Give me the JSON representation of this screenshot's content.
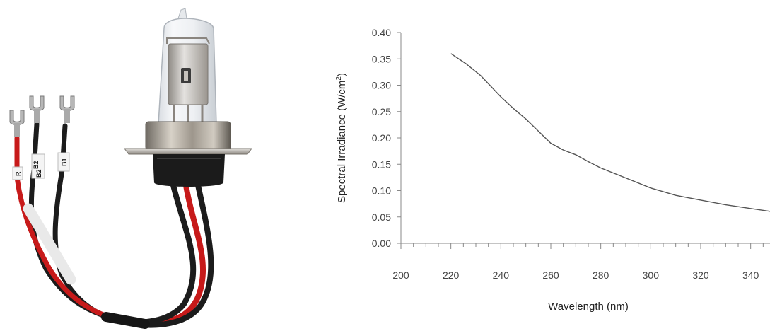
{
  "product_image": {
    "wire_labels": [
      "R",
      "B2",
      "B2",
      "B1"
    ]
  },
  "chart_data": {
    "type": "line",
    "xlabel": "Wavelength (nm)",
    "ylabel_main": "Spectral Irradiance (W/cm",
    "ylabel_sup": "2",
    "ylabel_end": ")",
    "xlim": [
      200,
      350
    ],
    "ylim": [
      0,
      0.4
    ],
    "x_ticks": [
      "200",
      "220",
      "240",
      "260",
      "280",
      "300",
      "320",
      "340"
    ],
    "y_ticks": [
      "0.00",
      "0.05",
      "0.10",
      "0.15",
      "0.20",
      "0.25",
      "0.30",
      "0.35",
      "0.40"
    ],
    "series": [
      {
        "color": "#555555",
        "x": [
          220,
          226,
          232,
          236,
          240,
          245,
          250,
          255,
          260,
          265,
          270,
          275,
          280,
          290,
          300,
          310,
          320,
          330,
          340,
          350
        ],
        "y": [
          0.36,
          0.341,
          0.318,
          0.298,
          0.278,
          0.256,
          0.236,
          0.213,
          0.19,
          0.177,
          0.168,
          0.155,
          0.143,
          0.124,
          0.105,
          0.091,
          0.082,
          0.073,
          0.066,
          0.059
        ]
      }
    ],
    "colors": {
      "axis": "#888888",
      "line": "#555555"
    }
  }
}
